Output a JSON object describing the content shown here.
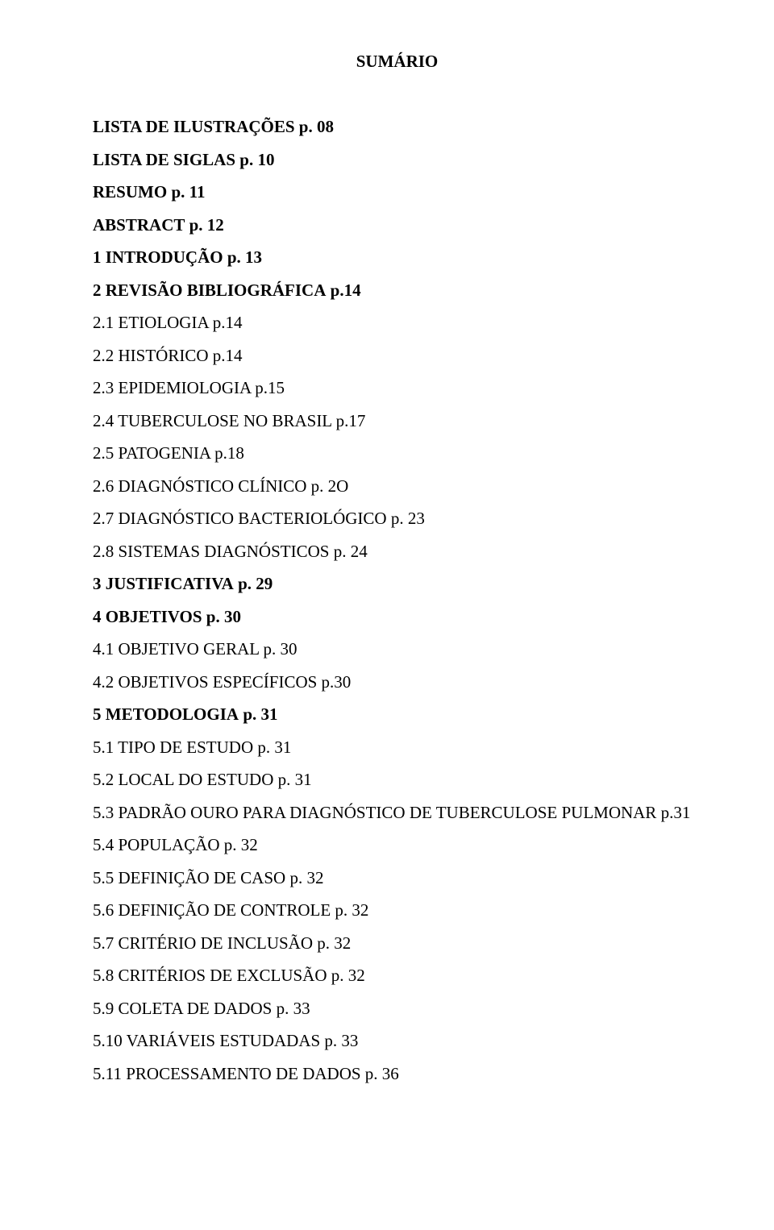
{
  "title": "SUMÁRIO",
  "font_family": "Times New Roman",
  "text_color": "#000000",
  "background_color": "#ffffff",
  "title_fontsize": 21,
  "entry_fontsize": 21,
  "entries": [
    {
      "label": "LISTA DE ILUSTRAÇÕES",
      "page": "p. 08",
      "bold": true
    },
    {
      "label": "LISTA DE SIGLAS",
      "page": "p. 10",
      "bold": true
    },
    {
      "label": "RESUMO",
      "page": "p. 11",
      "bold": true
    },
    {
      "label": "ABSTRACT",
      "page": "p. 12",
      "bold": true
    },
    {
      "label": "1 INTRODUÇÃO",
      "page": "p. 13",
      "bold": true
    },
    {
      "label": "2 REVISÃO BIBLIOGRÁFICA",
      "page": "p.14",
      "bold": true
    },
    {
      "label": "2.1 ETIOLOGIA",
      "page": "p.14",
      "bold": false
    },
    {
      "label": "2.2 HISTÓRICO",
      "page": "p.14",
      "bold": false
    },
    {
      "label": "2.3 EPIDEMIOLOGIA",
      "page": "p.15",
      "bold": false
    },
    {
      "label": "2.4 TUBERCULOSE NO BRASIL",
      "page": "p.17",
      "bold": false
    },
    {
      "label": "2.5 PATOGENIA",
      "page": "p.18",
      "bold": false
    },
    {
      "label": "2.6 DIAGNÓSTICO CLÍNICO",
      "page": "p. 2O",
      "bold": false
    },
    {
      "label": "2.7 DIAGNÓSTICO BACTERIOLÓGICO",
      "page": "p. 23",
      "bold": false
    },
    {
      "label": "2.8 SISTEMAS DIAGNÓSTICOS",
      "page": "p. 24",
      "bold": false
    },
    {
      "label": "3 JUSTIFICATIVA",
      "page": "p. 29",
      "bold": true
    },
    {
      "label": "4 OBJETIVOS",
      "page": "p. 30",
      "bold": true
    },
    {
      "label": "4.1 OBJETIVO GERAL",
      "page": "p. 30",
      "bold": false
    },
    {
      "label": "4.2 OBJETIVOS ESPECÍFICOS ",
      "page": "p.30",
      "bold": false
    },
    {
      "label": "5 METODOLOGIA",
      "page": "p. 31",
      "bold": true
    },
    {
      "label": "5.1 TIPO DE ESTUDO",
      "page": "p. 31",
      "bold": false
    },
    {
      "label": "5.2 LOCAL DO ESTUDO",
      "page": "p. 31",
      "bold": false
    },
    {
      "label": "5.3 PADRÃO OURO PARA DIAGNÓSTICO DE TUBERCULOSE PULMONAR",
      "page": "p.31",
      "bold": false
    },
    {
      "label": "5.4 POPULAÇÃO",
      "page": "p. 32",
      "bold": false
    },
    {
      "label": "5.5 DEFINIÇÃO DE CASO",
      "page": "p. 32",
      "bold": false
    },
    {
      "label": "5.6 DEFINIÇÃO DE CONTROLE",
      "page": "p. 32",
      "bold": false
    },
    {
      "label": "5.7 CRITÉRIO DE INCLUSÃO",
      "page": "p. 32",
      "bold": false
    },
    {
      "label": "5.8 CRITÉRIOS DE EXCLUSÃO",
      "page": "p. 32",
      "bold": false
    },
    {
      "label": "5.9 COLETA DE DADOS",
      "page": "p. 33",
      "bold": false
    },
    {
      "label": "5.10 VARIÁVEIS ESTUDADAS",
      "page": "p. 33",
      "bold": false
    },
    {
      "label": "5.11 PROCESSAMENTO DE DADOS",
      "page": "p. 36",
      "bold": false
    }
  ]
}
